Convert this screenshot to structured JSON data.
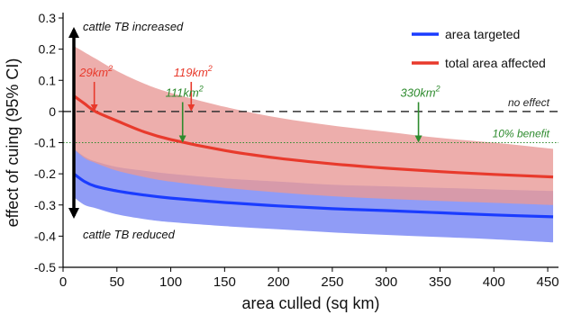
{
  "chart_data": {
    "type": "line",
    "xlabel": "area culled (sq km)",
    "ylabel": "effect of cuing (95% CI)",
    "xlim": [
      0,
      460
    ],
    "ylim": [
      -0.5,
      0.3
    ],
    "x_ticks": [
      0,
      50,
      100,
      150,
      200,
      250,
      300,
      350,
      400,
      450
    ],
    "y_ticks": [
      -0.5,
      -0.4,
      -0.3,
      -0.2,
      -0.1,
      0,
      0.1,
      0.2,
      0.3
    ],
    "x_tick_labels": [
      "0",
      "50",
      "100",
      "150",
      "200",
      "250",
      "300",
      "350",
      "400",
      "450"
    ],
    "y_tick_labels": [
      "-0.5",
      "-0.4",
      "-0.3",
      "-0.2",
      "-0.1",
      "0",
      "0.1",
      "0.2",
      "0.3"
    ],
    "grid": false,
    "legend_position": "top-right",
    "colors": {
      "area_targeted": "#1a3cff",
      "area_targeted_band": "#8a97f5",
      "total_area_affected": "#e83a2c",
      "total_area_affected_band": "#e99a97",
      "no_effect_line": "#333333",
      "benefit_line": "#2e8b2e",
      "annotation_red": "#e83a2c",
      "annotation_green": "#2e8b2e",
      "arrow": "#000000"
    },
    "series": [
      {
        "name": "area targeted",
        "x": [
          10,
          20,
          30,
          50,
          75,
          100,
          150,
          200,
          250,
          300,
          350,
          400,
          455
        ],
        "y": [
          -0.2,
          -0.225,
          -0.24,
          -0.255,
          -0.268,
          -0.278,
          -0.292,
          -0.303,
          -0.312,
          -0.318,
          -0.325,
          -0.332,
          -0.338
        ],
        "ci_lower": [
          -0.275,
          -0.3,
          -0.31,
          -0.33,
          -0.345,
          -0.355,
          -0.368,
          -0.378,
          -0.388,
          -0.396,
          -0.403,
          -0.41,
          -0.42
        ],
        "ci_upper": [
          -0.12,
          -0.145,
          -0.16,
          -0.178,
          -0.19,
          -0.2,
          -0.215,
          -0.225,
          -0.235,
          -0.24,
          -0.245,
          -0.25,
          -0.255
        ]
      },
      {
        "name": "total area affected",
        "x": [
          10,
          20,
          30,
          50,
          75,
          100,
          150,
          200,
          250,
          300,
          350,
          400,
          455
        ],
        "y": [
          0.05,
          0.025,
          0.0,
          -0.03,
          -0.065,
          -0.09,
          -0.125,
          -0.15,
          -0.168,
          -0.182,
          -0.193,
          -0.202,
          -0.21
        ],
        "ci_lower": [
          -0.12,
          -0.15,
          -0.165,
          -0.19,
          -0.21,
          -0.225,
          -0.245,
          -0.26,
          -0.272,
          -0.28,
          -0.287,
          -0.293,
          -0.3
        ],
        "ci_upper": [
          0.21,
          0.19,
          0.17,
          0.13,
          0.09,
          0.06,
          0.015,
          -0.02,
          -0.045,
          -0.065,
          -0.085,
          -0.1,
          -0.12
        ]
      }
    ],
    "reference_lines": [
      {
        "label": "no effect",
        "y": 0,
        "style": "dashed"
      },
      {
        "label": "10% benefit",
        "y": -0.1,
        "style": "dotted"
      }
    ],
    "annotations": [
      {
        "text": "cattle TB increased"
      },
      {
        "text": "cattle TB reduced"
      },
      {
        "text": "29km",
        "sup": "2",
        "color": "red",
        "x": 29,
        "arrow_y_from": 0.095,
        "arrow_y_to": 0.0
      },
      {
        "text": "119km",
        "sup": "2",
        "color": "red",
        "x": 119,
        "arrow_y_from": 0.095,
        "arrow_y_to": 0.0
      },
      {
        "text": "111km",
        "sup": "2",
        "color": "green",
        "x": 111,
        "arrow_y_from": 0.03,
        "arrow_y_to": -0.1
      },
      {
        "text": "330km",
        "sup": "2",
        "color": "green",
        "x": 330,
        "arrow_y_from": 0.03,
        "arrow_y_to": -0.1
      }
    ]
  }
}
